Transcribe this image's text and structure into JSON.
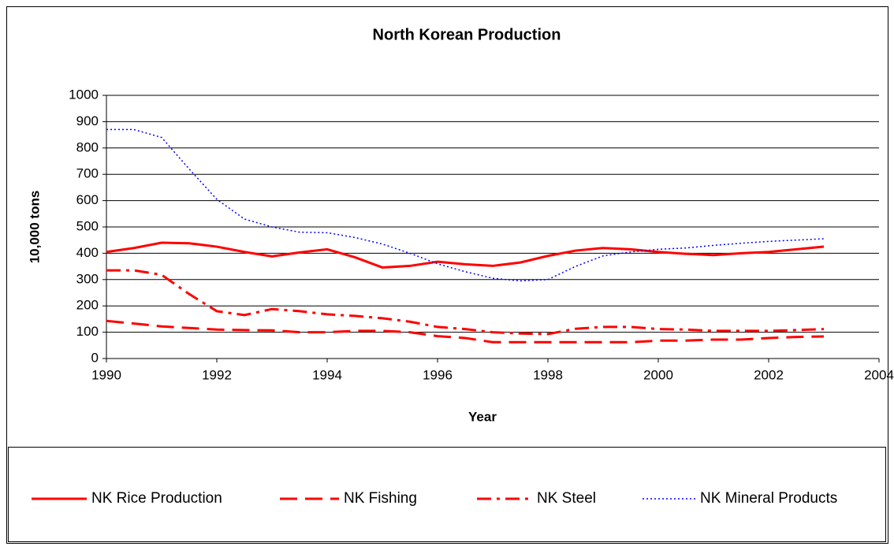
{
  "chart_data": {
    "type": "line",
    "title": "North Korean Production",
    "xlabel": "Year",
    "ylabel": "10,000 tons",
    "x": [
      1990,
      1990.5,
      1991,
      1991.5,
      1992,
      1992.5,
      1993,
      1993.5,
      1994,
      1994.5,
      1995,
      1995.5,
      1996,
      1996.5,
      1997,
      1997.5,
      1998,
      1998.5,
      1999,
      1999.5,
      2000,
      2000.5,
      2001,
      2001.5,
      2002,
      2002.5,
      2003
    ],
    "series": [
      {
        "name": "NK Rice Production",
        "color": "#ff0000",
        "dash": "solid",
        "values": [
          405,
          420,
          440,
          438,
          425,
          405,
          388,
          403,
          415,
          385,
          346,
          352,
          368,
          358,
          352,
          365,
          390,
          410,
          420,
          415,
          405,
          398,
          393,
          400,
          405,
          415,
          425
        ]
      },
      {
        "name": "NK Fishing",
        "color": "#ff0000",
        "dash": "dashed",
        "values": [
          143,
          133,
          122,
          116,
          110,
          108,
          107,
          100,
          100,
          105,
          105,
          100,
          85,
          78,
          62,
          62,
          62,
          62,
          62,
          62,
          68,
          68,
          72,
          72,
          78,
          82,
          84
        ]
      },
      {
        "name": "NK Steel",
        "color": "#ff0000",
        "dash": "dashdot",
        "values": [
          335,
          335,
          318,
          245,
          180,
          165,
          188,
          180,
          168,
          162,
          153,
          140,
          120,
          112,
          100,
          95,
          93,
          113,
          120,
          120,
          112,
          110,
          105,
          105,
          105,
          108,
          112
        ]
      },
      {
        "name": "NK Mineral Products",
        "color": "#0000ff",
        "dash": "dotted",
        "values": [
          870,
          870,
          840,
          720,
          605,
          530,
          500,
          480,
          478,
          460,
          435,
          400,
          360,
          330,
          305,
          295,
          300,
          350,
          390,
          405,
          415,
          420,
          430,
          438,
          445,
          450,
          455
        ]
      }
    ],
    "xlim": [
      1990,
      2004
    ],
    "xticks": [
      1990,
      1992,
      1994,
      1996,
      1998,
      2000,
      2002,
      2004
    ],
    "ylim": [
      0,
      1000
    ],
    "yticks": [
      0,
      100,
      200,
      300,
      400,
      500,
      600,
      700,
      800,
      900,
      1000
    ],
    "grid": true,
    "legend": "bottom"
  }
}
